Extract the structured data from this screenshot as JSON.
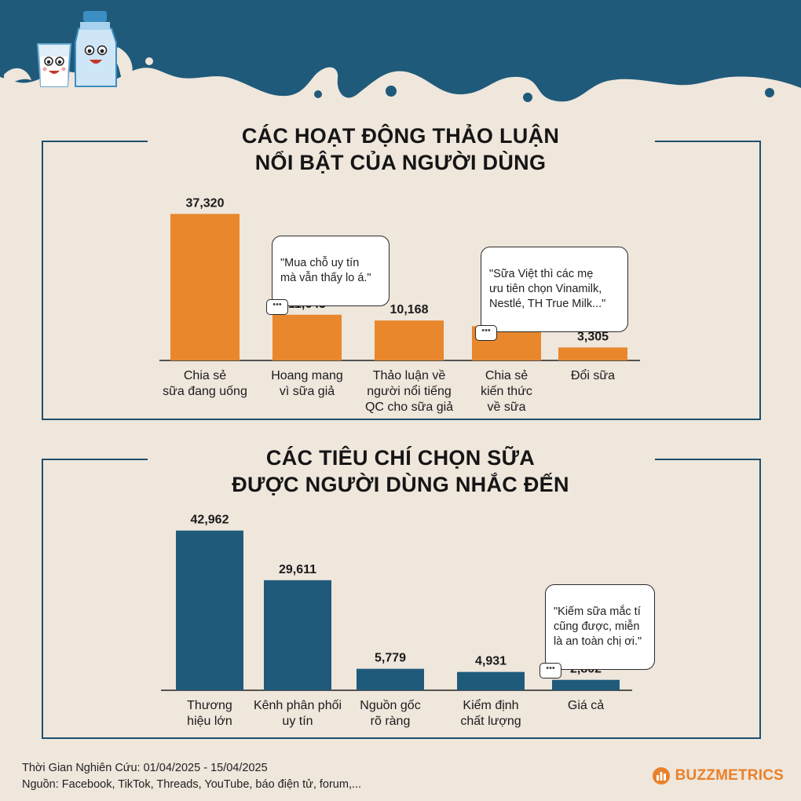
{
  "colors": {
    "navy": "#1f5a7a",
    "orange": "#e8872c",
    "background": "#efe6dc",
    "frame": "#1f4f6e"
  },
  "header": {
    "illustration": "milk-glass-and-bottle-mascots"
  },
  "chart1": {
    "title_line1": "CÁC HOẠT ĐỘNG THẢO LUẬN",
    "title_line2": "NỔI BẬT CỦA NGƯỜI DÙNG",
    "bubbles": [
      "\"Mua chỗ uy tín\nmà vẫn thấy lo á.\"",
      "\"Sữa Việt thì các mẹ\nưu tiên chọn Vinamilk,\nNestlé, TH True Milk...\""
    ]
  },
  "chart2": {
    "title_line1": "CÁC TIÊU CHÍ CHỌN SỮA",
    "title_line2": "ĐƯỢC NGƯỜI DÙNG NHẮC ĐẾN",
    "bubbles": [
      "\"Kiếm sữa mắc tí\ncũng được, miễn\nlà an toàn chị ơi.\""
    ]
  },
  "chart_data": [
    {
      "type": "bar",
      "title": "CÁC HOẠT ĐỘNG THẢO LUẬN NỔI BẬT CỦA NGƯỜI DÙNG",
      "categories": [
        "Chia sẻ\nsữa đang uống",
        "Hoang mang\nvì sữa giả",
        "Thảo luận về\nngười nổi tiếng\nQC cho sữa giả",
        "Chia sẻ\nkiến thức\nvề sữa",
        "Đổi sữa"
      ],
      "values": [
        37320,
        11643,
        10168,
        8734,
        3305
      ],
      "value_labels": [
        "37,320",
        "11,643",
        "10,168",
        "8,734",
        "3,305"
      ],
      "color": "#e8872c",
      "ylim": [
        0,
        40000
      ],
      "grid": false
    },
    {
      "type": "bar",
      "title": "CÁC TIÊU CHÍ CHỌN SỮA ĐƯỢC NGƯỜI DÙNG NHẮC ĐẾN",
      "categories": [
        "Thương\nhiệu lớn",
        "Kênh phân phối\nuy tín",
        "Nguồn gốc\nrõ ràng",
        "Kiểm định\nchất lượng",
        "Giá cả"
      ],
      "values": [
        42962,
        29611,
        5779,
        4931,
        2802
      ],
      "value_labels": [
        "42,962",
        "29,611",
        "5,779",
        "4,931",
        "2,802"
      ],
      "color": "#1f5a7a",
      "ylim": [
        0,
        45000
      ],
      "grid": false
    }
  ],
  "footer": {
    "period": "Thời Gian Nghiên Cứu: 01/04/2025 - 15/04/2025",
    "source": "Nguồn: Facebook, TikTok, Threads, YouTube, báo điện tử, forum,...",
    "logo_text": "BUZZMETRICS"
  }
}
